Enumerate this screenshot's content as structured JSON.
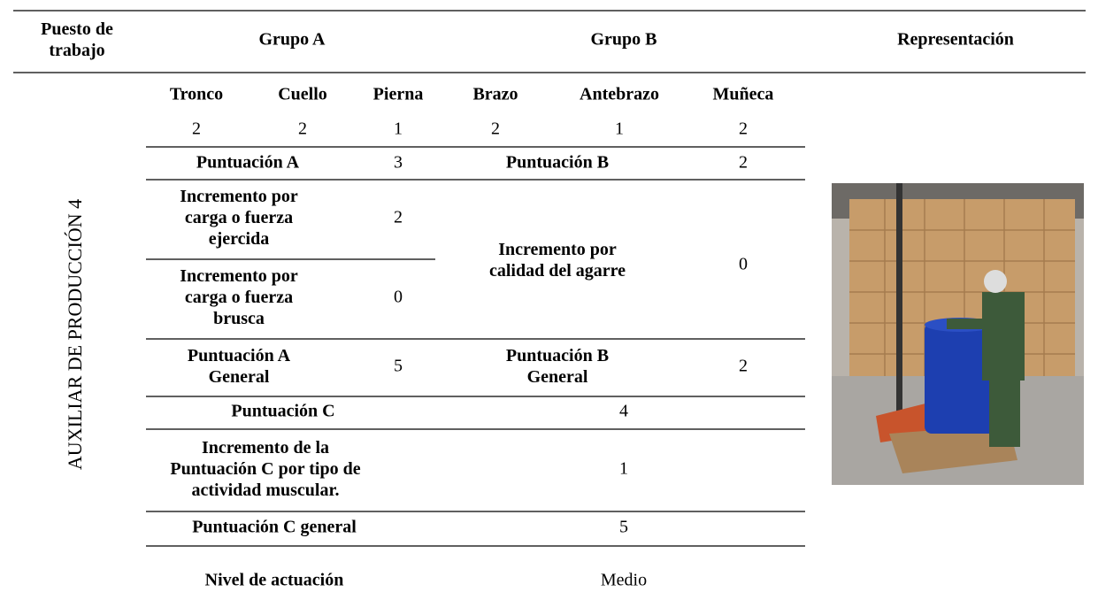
{
  "header": {
    "position": [
      "Puesto de",
      "trabajo"
    ],
    "group_a": "Grupo A",
    "group_b": "Grupo B",
    "representation": "Representación"
  },
  "job": "AUXILIAR DE PRODUCCIÓN 4",
  "segments": {
    "labels": [
      "Tronco",
      "Cuello",
      "Pierna",
      "Brazo",
      "Antebrazo",
      "Muñeca"
    ],
    "values": [
      2,
      2,
      1,
      2,
      1,
      2
    ]
  },
  "rows": {
    "score_a": {
      "label": "Puntuación A",
      "value": 3
    },
    "score_b": {
      "label": "Puntuación B",
      "value": 2
    },
    "load_exerted": {
      "label": [
        "Incremento por",
        "carga o fuerza",
        "ejercida"
      ],
      "value": 2
    },
    "load_sudden": {
      "label": [
        "Incremento por",
        "carga o fuerza",
        "brusca"
      ],
      "value": 0
    },
    "grip": {
      "label": [
        "Incremento por",
        "calidad del agarre"
      ],
      "value": 0
    },
    "score_a_general": {
      "label": [
        "Puntuación A",
        "General"
      ],
      "value": 5
    },
    "score_b_general": {
      "label": [
        "Puntuación B",
        "General"
      ],
      "value": 2
    },
    "score_c": {
      "label": "Puntuación C",
      "value": 4
    },
    "activity": {
      "label": [
        "Incremento de la",
        "Puntuación C por tipo de",
        "actividad muscular."
      ],
      "value": 1
    },
    "score_c_general": {
      "label": "Puntuación C general",
      "value": 5
    },
    "action_level": {
      "label": "Nivel de actuación",
      "value": "Medio"
    }
  }
}
